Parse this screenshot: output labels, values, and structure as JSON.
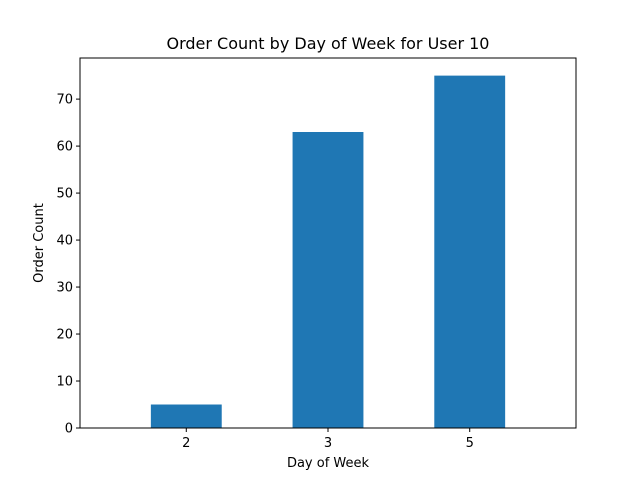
{
  "chart_data": {
    "type": "bar",
    "title": "Order Count by Day of Week for User 10",
    "xlabel": "Day of Week",
    "ylabel": "Order Count",
    "categories": [
      "2",
      "3",
      "5"
    ],
    "values": [
      5,
      63,
      75
    ],
    "ylim": [
      0,
      78.75
    ],
    "yticks": [
      0,
      10,
      20,
      30,
      40,
      50,
      60,
      70
    ],
    "grid": false,
    "bar_color": "#1f77b4"
  }
}
